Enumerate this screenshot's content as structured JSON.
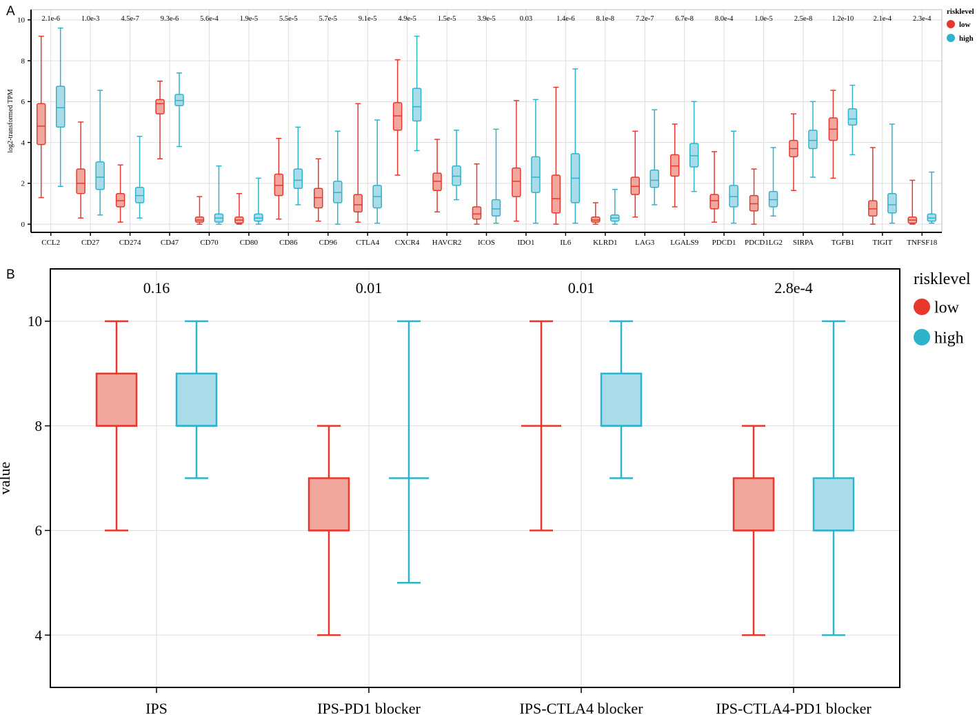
{
  "panels": {
    "a_label": "A",
    "b_label": "B"
  },
  "colors": {
    "low_stroke": "#e8372c",
    "low_fill": "#f1a79d",
    "high_stroke": "#2eb3cc",
    "high_fill": "#a9dbe8",
    "grid": "#dddddd",
    "axis": "#000000"
  },
  "chart_data": [
    {
      "type": "box",
      "id": "A",
      "title": "",
      "xlabel": "",
      "ylabel": "log2-transformed TPM",
      "ylim": [
        -0.4,
        10.5
      ],
      "yticks": [
        0,
        2,
        4,
        6,
        8,
        10
      ],
      "grid": true,
      "legend": {
        "title": "risklevel",
        "position": "top-right",
        "entries": [
          "low",
          "high"
        ]
      },
      "categories": [
        "CCL2",
        "CD27",
        "CD274",
        "CD47",
        "CD70",
        "CD80",
        "CD86",
        "CD96",
        "CTLA4",
        "CXCR4",
        "HAVCR2",
        "ICOS",
        "IDO1",
        "IL6",
        "KLRD1",
        "LAG3",
        "LGALS9",
        "PDCD1",
        "PDCD1LG2",
        "SIRPA",
        "TGFB1",
        "TIGIT",
        "TNFSF18"
      ],
      "pvalues": [
        "2.1e-6",
        "1.0e-3",
        "4.5e-7",
        "9.3e-6",
        "5.6e-4",
        "1.9e-5",
        "5.5e-5",
        "5.7e-5",
        "9.1e-5",
        "4.9e-5",
        "1.5e-5",
        "3.9e-5",
        "0.03",
        "1.4e-6",
        "8.1e-8",
        "7.2e-7",
        "6.7e-8",
        "8.0e-4",
        "1.0e-5",
        "2.5e-8",
        "1.2e-10",
        "2.1e-4",
        "2.3e-4"
      ],
      "series": [
        {
          "name": "low",
          "boxes": [
            [
              1.3,
              3.9,
              4.8,
              5.9,
              9.2
            ],
            [
              0.3,
              1.5,
              2.0,
              2.7,
              5.0
            ],
            [
              0.1,
              0.85,
              1.15,
              1.5,
              2.9
            ],
            [
              3.2,
              5.4,
              5.9,
              6.1,
              7.0
            ],
            [
              0.0,
              0.1,
              0.2,
              0.35,
              1.35
            ],
            [
              0.0,
              0.05,
              0.2,
              0.35,
              1.5
            ],
            [
              0.25,
              1.4,
              1.9,
              2.45,
              4.2
            ],
            [
              0.15,
              0.8,
              1.3,
              1.75,
              3.2
            ],
            [
              0.1,
              0.6,
              0.95,
              1.45,
              5.9
            ],
            [
              2.4,
              4.6,
              5.3,
              5.95,
              8.05
            ],
            [
              0.6,
              1.65,
              2.1,
              2.5,
              4.15
            ],
            [
              0.0,
              0.25,
              0.5,
              0.85,
              2.95
            ],
            [
              0.15,
              1.35,
              2.1,
              2.75,
              6.05
            ],
            [
              0.0,
              0.55,
              1.25,
              2.4,
              6.7
            ],
            [
              0.0,
              0.1,
              0.2,
              0.35,
              1.05
            ],
            [
              0.35,
              1.45,
              1.85,
              2.3,
              4.55
            ],
            [
              0.85,
              2.35,
              2.85,
              3.4,
              4.9
            ],
            [
              0.1,
              0.75,
              1.15,
              1.45,
              3.55
            ],
            [
              0.0,
              0.65,
              1.0,
              1.4,
              2.7
            ],
            [
              1.65,
              3.3,
              3.7,
              4.1,
              5.4
            ],
            [
              2.25,
              4.1,
              4.65,
              5.2,
              6.55
            ],
            [
              0.0,
              0.4,
              0.75,
              1.15,
              3.75
            ],
            [
              0.0,
              0.05,
              0.2,
              0.35,
              2.15
            ]
          ]
        },
        {
          "name": "high",
          "boxes": [
            [
              1.85,
              4.75,
              5.7,
              6.75,
              9.6
            ],
            [
              0.45,
              1.7,
              2.3,
              3.05,
              6.55
            ],
            [
              0.3,
              1.05,
              1.4,
              1.8,
              4.3
            ],
            [
              3.8,
              5.8,
              6.05,
              6.35,
              7.4
            ],
            [
              0.0,
              0.1,
              0.3,
              0.5,
              2.85
            ],
            [
              0.0,
              0.15,
              0.3,
              0.5,
              2.25
            ],
            [
              0.95,
              1.75,
              2.15,
              2.7,
              4.75
            ],
            [
              0.0,
              1.05,
              1.55,
              2.1,
              4.55
            ],
            [
              0.05,
              0.8,
              1.35,
              1.9,
              5.1
            ],
            [
              3.6,
              5.05,
              5.75,
              6.65,
              9.2
            ],
            [
              1.2,
              1.9,
              2.35,
              2.85,
              4.6
            ],
            [
              0.05,
              0.4,
              0.75,
              1.2,
              4.65
            ],
            [
              0.05,
              1.55,
              2.3,
              3.3,
              6.1
            ],
            [
              0.05,
              1.05,
              2.25,
              3.45,
              7.6
            ],
            [
              0.0,
              0.15,
              0.3,
              0.45,
              1.7
            ],
            [
              0.95,
              1.8,
              2.15,
              2.65,
              5.6
            ],
            [
              1.6,
              2.8,
              3.35,
              3.95,
              6.0
            ],
            [
              0.05,
              0.85,
              1.35,
              1.9,
              4.55
            ],
            [
              0.4,
              0.85,
              1.2,
              1.6,
              3.75
            ],
            [
              2.3,
              3.7,
              4.1,
              4.6,
              6.0
            ],
            [
              3.4,
              4.85,
              5.15,
              5.65,
              6.8
            ],
            [
              0.05,
              0.55,
              0.95,
              1.5,
              4.9
            ],
            [
              0.05,
              0.15,
              0.3,
              0.5,
              2.55
            ]
          ]
        }
      ]
    },
    {
      "type": "box",
      "id": "B",
      "title": "",
      "xlabel": "",
      "ylabel": "value",
      "ylim": [
        3,
        11
      ],
      "yticks": [
        4,
        6,
        8,
        10
      ],
      "grid": true,
      "legend": {
        "title": "risklevel",
        "position": "top-right",
        "entries": [
          "low",
          "high"
        ]
      },
      "categories": [
        "IPS",
        "IPS-PD1 blocker",
        "IPS-CTLA4 blocker",
        "IPS-CTLA4-PD1 blocker"
      ],
      "pvalues": [
        "0.16",
        "0.01",
        "0.01",
        "2.8e-4"
      ],
      "series": [
        {
          "name": "low",
          "boxes": [
            [
              6,
              8,
              8,
              9,
              10
            ],
            [
              4,
              6,
              6,
              7,
              8
            ],
            [
              6,
              8,
              8,
              8,
              10
            ],
            [
              4,
              6,
              6,
              7,
              8
            ]
          ]
        },
        {
          "name": "high",
          "boxes": [
            [
              7,
              8,
              8,
              9,
              10
            ],
            [
              5,
              7,
              7,
              7,
              10
            ],
            [
              7,
              8,
              8,
              9,
              10
            ],
            [
              4,
              6,
              6,
              7,
              10
            ]
          ]
        }
      ]
    }
  ]
}
